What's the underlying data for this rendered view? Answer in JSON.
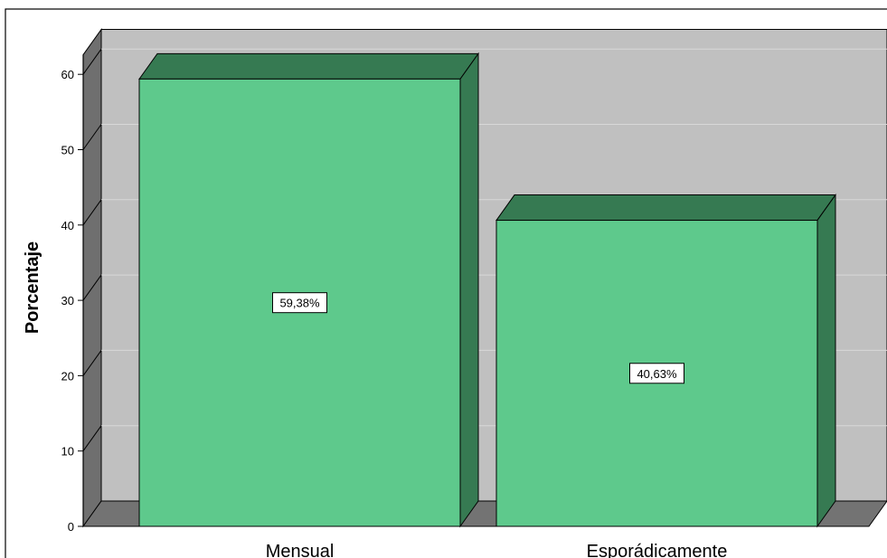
{
  "chart_data": {
    "type": "bar",
    "categories": [
      "Mensual",
      "Esporádicamente"
    ],
    "values": [
      59.38,
      40.63
    ],
    "data_labels": [
      "59,38%",
      "40,63%"
    ],
    "title": "",
    "xlabel": "",
    "ylabel": "Porcentaje",
    "ylim": [
      0,
      65
    ],
    "yticks": [
      0,
      10,
      20,
      30,
      40,
      50,
      60
    ],
    "grid": true,
    "style": "3d",
    "colors": {
      "bar_front": "#5ec98c",
      "bar_top": "#367a52",
      "bar_side": "#367a52",
      "back_wall": "#c0c0c0",
      "side_wall": "#6f6f6f",
      "floor": "#737373",
      "gridline": "#d8d8d8"
    }
  }
}
